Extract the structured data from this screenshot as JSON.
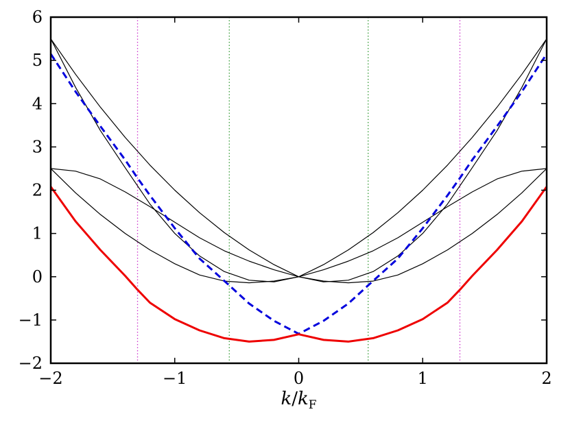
{
  "chart_data": {
    "type": "line",
    "title": "",
    "xlabel": {
      "main": "k",
      "sep": "/",
      "base": "k",
      "sub": "F"
    },
    "ylabel": "",
    "xlim": [
      -2,
      2
    ],
    "ylim": [
      -2,
      6
    ],
    "grid": false,
    "xticks": [
      {
        "value": -2,
        "label": "−2"
      },
      {
        "value": -1,
        "label": "−1"
      },
      {
        "value": 0,
        "label": "0"
      },
      {
        "value": 1,
        "label": "1"
      },
      {
        "value": 2,
        "label": "2"
      }
    ],
    "yticks": [
      {
        "value": -2,
        "label": "−2"
      },
      {
        "value": -1,
        "label": "−1"
      },
      {
        "value": 0,
        "label": "0"
      },
      {
        "value": 1,
        "label": "1"
      },
      {
        "value": 2,
        "label": "2"
      },
      {
        "value": 3,
        "label": "3"
      },
      {
        "value": 4,
        "label": "4"
      },
      {
        "value": 5,
        "label": "5"
      },
      {
        "value": 6,
        "label": "6"
      }
    ],
    "vlines": [
      {
        "x": -1.3,
        "color": "#cc33cc",
        "style": "dotted"
      },
      {
        "x": -0.56,
        "color": "#339933",
        "style": "dotted"
      },
      {
        "x": 0.56,
        "color": "#339933",
        "style": "dotted"
      },
      {
        "x": 1.3,
        "color": "#cc33cc",
        "style": "dotted"
      }
    ],
    "series": [
      {
        "color": "#000000",
        "style": "solid",
        "width": 1.2,
        "x": [
          -2,
          -1.8,
          -1.6,
          -1.4,
          -1.2,
          -1.0,
          -0.8,
          -0.6,
          -0.4,
          -0.2,
          0,
          0.2,
          0.4,
          0.6,
          0.8,
          1.0,
          1.2,
          1.4,
          1.6,
          1.8,
          2
        ],
        "y": [
          5.5,
          4.68,
          3.92,
          3.22,
          2.58,
          2.0,
          1.48,
          1.02,
          0.62,
          0.28,
          0.0,
          -0.12,
          -0.08,
          0.12,
          0.48,
          1.0,
          1.68,
          2.52,
          3.38,
          4.38,
          5.5
        ]
      },
      {
        "color": "#000000",
        "style": "solid",
        "width": 1.2,
        "x": [
          -2,
          -1.8,
          -1.6,
          -1.4,
          -1.2,
          -1.0,
          -0.8,
          -0.6,
          -0.4,
          -0.2,
          0,
          0.2,
          0.4,
          0.6,
          0.8,
          1.0,
          1.2,
          1.4,
          1.6,
          1.8,
          2
        ],
        "y": [
          5.5,
          4.38,
          3.38,
          2.52,
          1.68,
          1.0,
          0.48,
          0.12,
          -0.08,
          -0.12,
          0.0,
          0.28,
          0.62,
          1.02,
          1.48,
          2.0,
          2.58,
          3.22,
          3.92,
          4.68,
          5.5
        ]
      },
      {
        "color": "#000000",
        "style": "solid",
        "width": 1.2,
        "x": [
          -2,
          -1.8,
          -1.6,
          -1.4,
          -1.2,
          -1.0,
          -0.8,
          -0.6,
          -0.4,
          -0.2,
          0,
          0.2,
          0.4,
          0.6,
          0.8,
          1.0,
          1.2,
          1.4,
          1.6,
          1.8,
          2
        ],
        "y": [
          2.5,
          1.94,
          1.44,
          1.0,
          0.62,
          0.3,
          0.04,
          -0.1,
          -0.14,
          -0.1,
          0.0,
          0.16,
          0.36,
          0.6,
          0.9,
          1.26,
          1.62,
          1.96,
          2.26,
          2.44,
          2.5
        ]
      },
      {
        "color": "#000000",
        "style": "solid",
        "width": 1.2,
        "x": [
          -2,
          -1.8,
          -1.6,
          -1.4,
          -1.2,
          -1.0,
          -0.8,
          -0.6,
          -0.4,
          -0.2,
          0,
          0.2,
          0.4,
          0.6,
          0.8,
          1.0,
          1.2,
          1.4,
          1.6,
          1.8,
          2
        ],
        "y": [
          2.5,
          2.44,
          2.26,
          1.96,
          1.62,
          1.26,
          0.9,
          0.6,
          0.36,
          0.16,
          0.0,
          -0.1,
          -0.14,
          -0.1,
          0.04,
          0.3,
          0.62,
          1.0,
          1.44,
          1.94,
          2.5
        ]
      },
      {
        "color": "#0000dd",
        "style": "dashed",
        "width": 3,
        "x": [
          -2,
          -1.8,
          -1.6,
          -1.4,
          -1.3,
          -1.2,
          -1.0,
          -0.8,
          -0.56,
          -0.4,
          -0.2,
          0,
          0.2,
          0.4,
          0.56,
          0.8,
          1.0,
          1.2,
          1.3,
          1.4,
          1.6,
          1.8,
          2
        ],
        "y": [
          5.15,
          4.28,
          3.48,
          2.7,
          2.28,
          1.88,
          1.12,
          0.42,
          -0.2,
          -0.62,
          -1.02,
          -1.32,
          -1.02,
          -0.62,
          -0.2,
          0.42,
          1.12,
          1.88,
          2.28,
          2.7,
          3.48,
          4.28,
          5.15
        ]
      },
      {
        "color": "#ee0000",
        "style": "solid",
        "width": 3,
        "x": [
          -2,
          -1.8,
          -1.6,
          -1.4,
          -1.3,
          -1.2,
          -1.0,
          -0.8,
          -0.6,
          -0.4,
          -0.2,
          0,
          0.2,
          0.4,
          0.6,
          0.8,
          1.0,
          1.2,
          1.3,
          1.4,
          1.6,
          1.8,
          2
        ],
        "y": [
          2.08,
          1.28,
          0.62,
          0.02,
          -0.3,
          -0.6,
          -0.98,
          -1.24,
          -1.42,
          -1.5,
          -1.46,
          -1.33,
          -1.46,
          -1.5,
          -1.42,
          -1.24,
          -0.98,
          -0.6,
          -0.3,
          0.02,
          0.62,
          1.28,
          2.08
        ]
      }
    ]
  }
}
